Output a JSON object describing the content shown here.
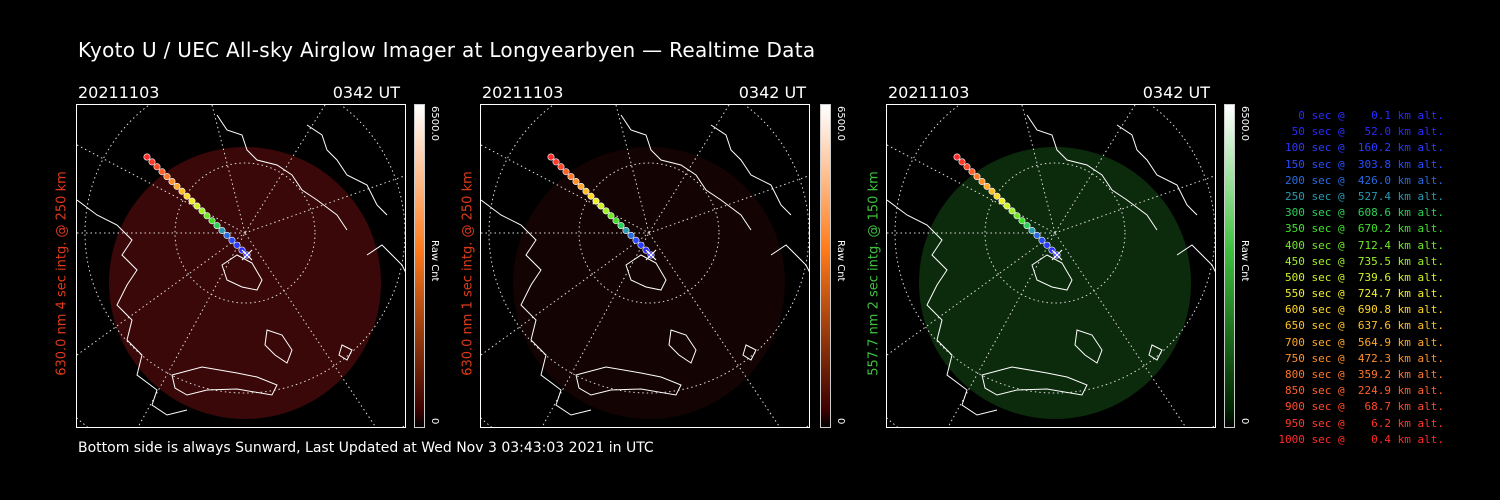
{
  "title": "Kyoto U / UEC All-sky Airglow Imager at Longyearbyen — Realtime Data",
  "footer": "Bottom side is always Sunward, Last Updated at Wed Nov  3 03:43:03 2021 in UTC",
  "panels": [
    {
      "date": "20211103",
      "time": "0342 UT",
      "label": "630.0 nm 4 sec intg. @ 250 km",
      "label_color": "#e03a1a",
      "cbar_max": "6500.0",
      "cbar_min": "0",
      "cbar_unit": "Raw Cnt",
      "glow": "#3a0808",
      "cbar_top": "#ffffff",
      "cbar_mid": "#ff7a1a",
      "cbar_bottom": "#3a0000"
    },
    {
      "date": "20211103",
      "time": "0342 UT",
      "label": "630.0 nm 1 sec intg. @ 250 km",
      "label_color": "#e03a1a",
      "cbar_max": "6500.0",
      "cbar_min": "0",
      "cbar_unit": "Raw Cnt",
      "glow": "#130303",
      "cbar_top": "#ffffff",
      "cbar_mid": "#ff7a1a",
      "cbar_bottom": "#3a0000"
    },
    {
      "date": "20211103",
      "time": "0342 UT",
      "label": "557.7 nm 2 sec intg. @ 150 km",
      "label_color": "#3ec23e",
      "cbar_max": "6500.0",
      "cbar_min": "0",
      "cbar_unit": "Raw Cnt",
      "glow": "#0c2a0c",
      "cbar_top": "#ffffff",
      "cbar_mid": "#3ec23e",
      "cbar_bottom": "#002200"
    }
  ],
  "legend": [
    {
      "text": "   0 sec @    0.1 km alt.",
      "color": "#2a2aff"
    },
    {
      "text": "  50 sec @   52.0 km alt.",
      "color": "#2a2aff"
    },
    {
      "text": " 100 sec @  160.2 km alt.",
      "color": "#2a3aff"
    },
    {
      "text": " 150 sec @  303.8 km alt.",
      "color": "#2a4aff"
    },
    {
      "text": " 200 sec @  426.0 km alt.",
      "color": "#2a6ae0"
    },
    {
      "text": " 250 sec @  527.4 km alt.",
      "color": "#2a9ab0"
    },
    {
      "text": " 300 sec @  608.6 km alt.",
      "color": "#2ad05a"
    },
    {
      "text": " 350 sec @  670.2 km alt.",
      "color": "#40e02a"
    },
    {
      "text": " 400 sec @  712.4 km alt.",
      "color": "#70e82a"
    },
    {
      "text": " 450 sec @  735.5 km alt.",
      "color": "#a0f02a"
    },
    {
      "text": " 500 sec @  739.6 km alt.",
      "color": "#d0f02a"
    },
    {
      "text": " 550 sec @  724.7 km alt.",
      "color": "#f0f02a"
    },
    {
      "text": " 600 sec @  690.8 km alt.",
      "color": "#ffd82a"
    },
    {
      "text": " 650 sec @  637.6 km alt.",
      "color": "#ffc02a"
    },
    {
      "text": " 700 sec @  564.9 km alt.",
      "color": "#ffa82a"
    },
    {
      "text": " 750 sec @  472.3 km alt.",
      "color": "#ff902a"
    },
    {
      "text": " 800 sec @  359.2 km alt.",
      "color": "#ff782a"
    },
    {
      "text": " 850 sec @  224.9 km alt.",
      "color": "#ff602a"
    },
    {
      "text": " 900 sec @   68.7 km alt.",
      "color": "#ff4a2a"
    },
    {
      "text": " 950 sec @    6.2 km alt.",
      "color": "#ff3a2a"
    },
    {
      "text": "1000 sec @    0.4 km alt.",
      "color": "#ff2a2a"
    }
  ]
}
